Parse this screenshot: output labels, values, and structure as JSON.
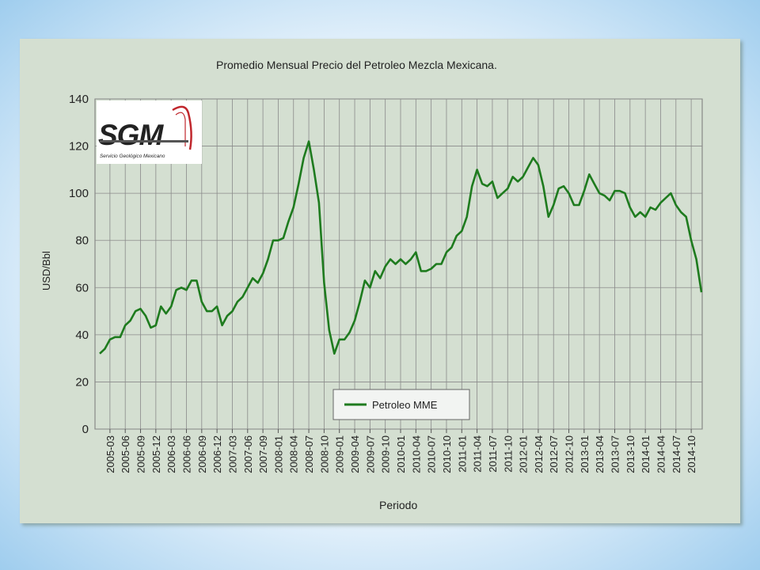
{
  "chart_data": {
    "type": "line",
    "title": "Promedio Mensual Precio del Petroleo Mezcla Mexicana.",
    "xlabel": "Periodo",
    "ylabel": "USD/Bbl",
    "ylim": [
      0,
      140
    ],
    "yticks": [
      0,
      20,
      40,
      60,
      80,
      100,
      120,
      140
    ],
    "x_tick_labels": [
      "2005-03",
      "2005-06",
      "2005-09",
      "2005-12",
      "2006-03",
      "2006-06",
      "2006-09",
      "2006-12",
      "2007-03",
      "2007-06",
      "2007-09",
      "2008-01",
      "2008-04",
      "2008-07",
      "2008-10",
      "2009-01",
      "2009-04",
      "2009-07",
      "2009-10",
      "2010-01",
      "2010-04",
      "2010-07",
      "2010-10",
      "2011-01",
      "2011-04",
      "2011-07",
      "2011-10",
      "2012-01",
      "2012-04",
      "2012-07",
      "2012-10",
      "2013-01",
      "2013-04",
      "2013-07",
      "2013-10",
      "2014-01",
      "2014-04",
      "2014-07",
      "2014-10"
    ],
    "grid": true,
    "legend_position": "bottom-center",
    "series": [
      {
        "name": "Petroleo MME",
        "color": "#1e7b1e",
        "values": [
          32,
          34,
          38,
          39,
          39,
          44,
          46,
          50,
          51,
          48,
          43,
          44,
          52,
          49,
          52,
          59,
          60,
          59,
          63,
          63,
          54,
          50,
          50,
          52,
          44,
          48,
          50,
          54,
          56,
          60,
          64,
          62,
          66,
          72,
          80,
          80,
          81,
          88,
          94,
          104,
          115,
          122,
          110,
          96,
          62,
          42,
          32,
          38,
          38,
          41,
          46,
          54,
          63,
          60,
          67,
          64,
          69,
          72,
          70,
          72,
          70,
          72,
          75,
          67,
          67,
          68,
          70,
          70,
          75,
          77,
          82,
          84,
          90,
          103,
          110,
          104,
          103,
          105,
          98,
          100,
          102,
          107,
          105,
          107,
          111,
          115,
          112,
          103,
          90,
          95,
          102,
          103,
          100,
          95,
          95,
          101,
          108,
          104,
          100,
          99,
          97,
          101,
          101,
          100,
          94,
          90,
          92,
          90,
          94,
          93,
          96,
          98,
          100,
          95,
          92,
          90,
          80,
          72,
          58
        ]
      }
    ]
  },
  "logo": {
    "text": "SGM",
    "subtitle": "Servicio Geológico Mexicano"
  }
}
